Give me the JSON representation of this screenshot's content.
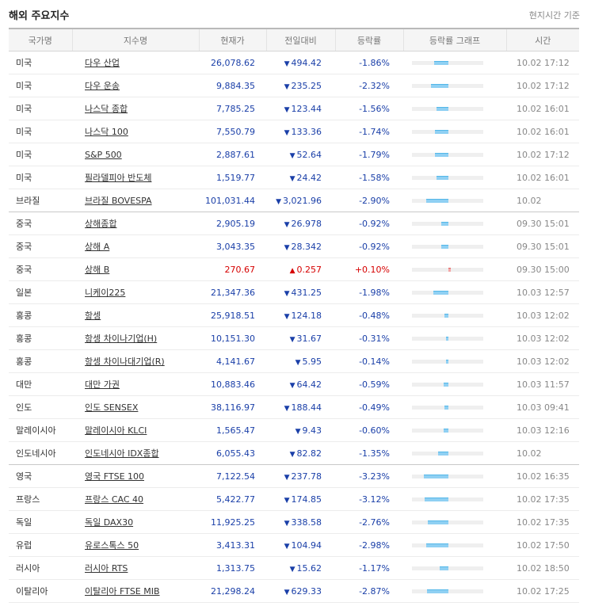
{
  "header": {
    "title": "해외 주요지수",
    "note": "현지시간 기준"
  },
  "columns": [
    "국가명",
    "지수명",
    "현재가",
    "전일대비",
    "등락률",
    "등락률 그래프",
    "시간"
  ],
  "colors": {
    "down": "#1a3fa8",
    "up": "#d60000",
    "bar_down": "#8fd0f3",
    "bar_up": "#f4a6a6"
  },
  "rows": [
    {
      "country": "미국",
      "name": "다우 산업",
      "price": "26,078.62",
      "change": "494.42",
      "rate": "-1.86%",
      "time": "10.02 17:12",
      "dir": "down",
      "pct": -1.86
    },
    {
      "country": "미국",
      "name": "다우 운송",
      "price": "9,884.35",
      "change": "235.25",
      "rate": "-2.32%",
      "time": "10.02 17:12",
      "dir": "down",
      "pct": -2.32
    },
    {
      "country": "미국",
      "name": "나스닥 종합",
      "price": "7,785.25",
      "change": "123.44",
      "rate": "-1.56%",
      "time": "10.02 16:01",
      "dir": "down",
      "pct": -1.56
    },
    {
      "country": "미국",
      "name": "나스닥 100",
      "price": "7,550.79",
      "change": "133.36",
      "rate": "-1.74%",
      "time": "10.02 16:01",
      "dir": "down",
      "pct": -1.74
    },
    {
      "country": "미국",
      "name": "S&P 500",
      "price": "2,887.61",
      "change": "52.64",
      "rate": "-1.79%",
      "time": "10.02 17:12",
      "dir": "down",
      "pct": -1.79
    },
    {
      "country": "미국",
      "name": "필라델피아 반도체",
      "price": "1,519.77",
      "change": "24.42",
      "rate": "-1.58%",
      "time": "10.02 16:01",
      "dir": "down",
      "pct": -1.58
    },
    {
      "country": "브라질",
      "name": "브라질 BOVESPA",
      "price": "101,031.44",
      "change": "3,021.96",
      "rate": "-2.90%",
      "time": "10.02",
      "dir": "down",
      "pct": -2.9,
      "group_end": true
    },
    {
      "country": "중국",
      "name": "상해종합",
      "price": "2,905.19",
      "change": "26.978",
      "rate": "-0.92%",
      "time": "09.30 15:01",
      "dir": "down",
      "pct": -0.92
    },
    {
      "country": "중국",
      "name": "상해 A",
      "price": "3,043.35",
      "change": "28.342",
      "rate": "-0.92%",
      "time": "09.30 15:01",
      "dir": "down",
      "pct": -0.92
    },
    {
      "country": "중국",
      "name": "상해 B",
      "price": "270.67",
      "change": "0.257",
      "rate": "+0.10%",
      "time": "09.30 15:00",
      "dir": "up",
      "pct": 0.1
    },
    {
      "country": "일본",
      "name": "니케이225",
      "price": "21,347.36",
      "change": "431.25",
      "rate": "-1.98%",
      "time": "10.03 12:57",
      "dir": "down",
      "pct": -1.98
    },
    {
      "country": "홍콩",
      "name": "항셍",
      "price": "25,918.51",
      "change": "124.18",
      "rate": "-0.48%",
      "time": "10.03 12:02",
      "dir": "down",
      "pct": -0.48
    },
    {
      "country": "홍콩",
      "name": "항셍 차이나기업(H)",
      "price": "10,151.30",
      "change": "31.67",
      "rate": "-0.31%",
      "time": "10.03 12:02",
      "dir": "down",
      "pct": -0.31
    },
    {
      "country": "홍콩",
      "name": "항셍 차이나대기업(R)",
      "price": "4,141.67",
      "change": "5.95",
      "rate": "-0.14%",
      "time": "10.03 12:02",
      "dir": "down",
      "pct": -0.14
    },
    {
      "country": "대만",
      "name": "대만 가권",
      "price": "10,883.46",
      "change": "64.42",
      "rate": "-0.59%",
      "time": "10.03 11:57",
      "dir": "down",
      "pct": -0.59
    },
    {
      "country": "인도",
      "name": "인도 SENSEX",
      "price": "38,116.97",
      "change": "188.44",
      "rate": "-0.49%",
      "time": "10.03 09:41",
      "dir": "down",
      "pct": -0.49
    },
    {
      "country": "말레이시아",
      "name": "말레이시아 KLCI",
      "price": "1,565.47",
      "change": "9.43",
      "rate": "-0.60%",
      "time": "10.03 12:16",
      "dir": "down",
      "pct": -0.6
    },
    {
      "country": "인도네시아",
      "name": "인도네시아 IDX종합",
      "price": "6,055.43",
      "change": "82.82",
      "rate": "-1.35%",
      "time": "10.02",
      "dir": "down",
      "pct": -1.35,
      "group_end": true
    },
    {
      "country": "영국",
      "name": "영국 FTSE 100",
      "price": "7,122.54",
      "change": "237.78",
      "rate": "-3.23%",
      "time": "10.02 16:35",
      "dir": "down",
      "pct": -3.23
    },
    {
      "country": "프랑스",
      "name": "프랑스 CAC 40",
      "price": "5,422.77",
      "change": "174.85",
      "rate": "-3.12%",
      "time": "10.02 17:35",
      "dir": "down",
      "pct": -3.12
    },
    {
      "country": "독일",
      "name": "독일 DAX30",
      "price": "11,925.25",
      "change": "338.58",
      "rate": "-2.76%",
      "time": "10.02 17:35",
      "dir": "down",
      "pct": -2.76
    },
    {
      "country": "유럽",
      "name": "유로스톡스 50",
      "price": "3,413.31",
      "change": "104.94",
      "rate": "-2.98%",
      "time": "10.02 17:50",
      "dir": "down",
      "pct": -2.98
    },
    {
      "country": "러시아",
      "name": "러시아 RTS",
      "price": "1,313.75",
      "change": "15.62",
      "rate": "-1.17%",
      "time": "10.02 18:50",
      "dir": "down",
      "pct": -1.17
    },
    {
      "country": "이탈리아",
      "name": "이탈리아 FTSE MIB",
      "price": "21,298.24",
      "change": "629.33",
      "rate": "-2.87%",
      "time": "10.02 17:25",
      "dir": "down",
      "pct": -2.87
    }
  ]
}
